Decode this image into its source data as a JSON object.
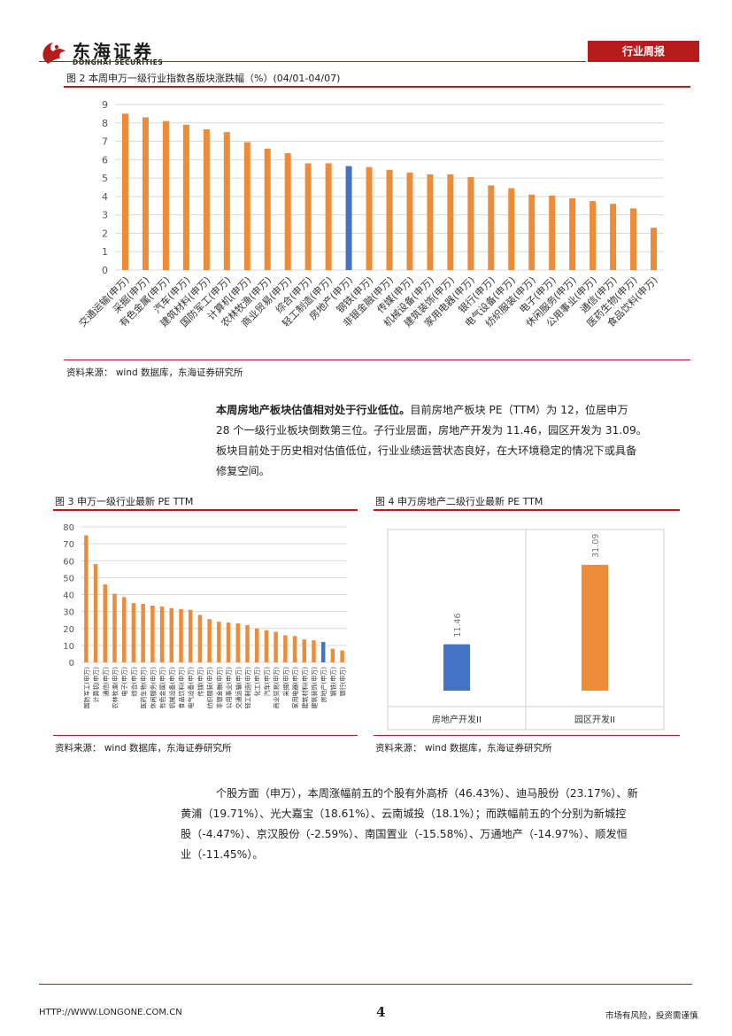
{
  "header": {
    "brand_cn": "东海证券",
    "brand_en": "DONGHAI SECURITIES",
    "report_type": "行业周报",
    "accent_color": "#b71c1c"
  },
  "figure2": {
    "caption": "图 2   本周申万一级行业指数各版块涨跌幅（%）(04/01-04/07)",
    "source": "资料来源：   wind 数据库，东海证券研究所"
  },
  "paragraph1": {
    "bold": "本周房地产板块估值相对处于行业低位。",
    "line1": "目前房地产板块 PE（TTM）为 12，位居申万",
    "line2": "28 个一级行业板块倒数第三位。子行业层面，房地产开发为 11.46，园区开发为 31.09。",
    "line3": "板块目前处于历史相对估值低位，行业业绩运营状态良好，在大环境稳定的情况下或具备",
    "line4": "修复空间。"
  },
  "figure3": {
    "caption": "图 3   申万一级行业最新 PE TTM",
    "source": "资料来源：   wind 数据库，东海证券研究所"
  },
  "figure4": {
    "caption": "图 4   申万房地产二级行业最新 PE TTM",
    "source": "资料来源：   wind 数据库，东海证券研究所"
  },
  "paragraph2": {
    "line1": "个股方面（申万），本周涨幅前五的个股有外高桥（46.43%）、迪马股份（23.17%）、新",
    "line2": "黄浦（19.71%）、光大嘉宝（18.61%）、云南城投（18.1%）；而跌幅前五的个分别为新城控",
    "line3": "股（-4.47%）、京汉股份（-2.59%）、南国置业（-15.58%）、万通地产（-14.97%）、顺发恒",
    "line4": "业（-11.45%）。"
  },
  "footer": {
    "url": "HTTP://WWW.LONGONE.COM.CN",
    "page": "4",
    "disclaimer": "市场有风险，投资需谨慎"
  },
  "chart_data": [
    {
      "type": "bar",
      "categories": [
        "交通运输(申万)",
        "采掘(申万)",
        "有色金属(申万)",
        "汽车(申万)",
        "建筑材料(申万)",
        "国防军工(申万)",
        "计算机(申万)",
        "农林牧渔(申万)",
        "商业贸易(申万)",
        "综合(申万)",
        "轻工制造(申万)",
        "房地产(申万)",
        "钢铁(申万)",
        "非银金融(申万)",
        "传媒(申万)",
        "机械设备(申万)",
        "建筑装饰(申万)",
        "家用电器(申万)",
        "银行(申万)",
        "电气设备(申万)",
        "纺织服装(申万)",
        "电子(申万)",
        "休闲服务(申万)",
        "公用事业(申万)",
        "通信(申万)",
        "医药生物(申万)",
        "食品饮料(申万)"
      ],
      "values": [
        8.5,
        8.3,
        8.1,
        7.9,
        7.65,
        7.5,
        6.95,
        6.6,
        6.35,
        5.8,
        5.8,
        5.65,
        5.6,
        5.45,
        5.3,
        5.2,
        5.2,
        5.05,
        4.6,
        4.45,
        4.1,
        4.05,
        3.9,
        3.75,
        3.6,
        3.35,
        2.3
      ],
      "highlight_category": "房地产(申万)",
      "ylim": [
        0,
        9
      ],
      "yticks": [
        0,
        1,
        2,
        3,
        4,
        5,
        6,
        7,
        8,
        9
      ],
      "grid": true,
      "colors": {
        "bar": "#ed8b39",
        "highlight": "#4472c4"
      }
    },
    {
      "type": "bar",
      "categories": [
        "国防军工(申万)",
        "计算机(申万)",
        "通信(申万)",
        "农林牧渔(申万)",
        "电子(申万)",
        "综合(申万)",
        "医药生物(申万)",
        "休闲服务(申万)",
        "有色金属(申万)",
        "机械设备(申万)",
        "食品饮料(申万)",
        "电气设备(申万)",
        "传媒(申万)",
        "纺织服装(申万)",
        "非银金融(申万)",
        "公用事业(申万)",
        "交通运输(申万)",
        "轻工制造(申万)",
        "化工(申万)",
        "汽车(申万)",
        "商业贸易(申万)",
        "采掘(申万)",
        "家用电器(申万)",
        "建筑材料(申万)",
        "建筑装饰(申万)",
        "房地产(申万)",
        "钢铁(申万)",
        "银行(申万)"
      ],
      "values": [
        75,
        58,
        46,
        40.5,
        38.5,
        35,
        34.5,
        33.5,
        33,
        32,
        31.5,
        31,
        28,
        25.5,
        24,
        23.5,
        23,
        22,
        20,
        19,
        18,
        16,
        15.5,
        13.5,
        13,
        12,
        8,
        7
      ],
      "highlight_category": "房地产(申万)",
      "ylim": [
        0,
        80
      ],
      "yticks": [
        0,
        10,
        20,
        30,
        40,
        50,
        60,
        70,
        80
      ],
      "grid": true,
      "colors": {
        "bar": "#ed8b39",
        "highlight": "#4472c4"
      }
    },
    {
      "type": "bar",
      "categories": [
        "房地产开发II",
        "园区开发II"
      ],
      "values": [
        11.46,
        31.09
      ],
      "value_labels": [
        "11.46",
        "31.09"
      ],
      "ylim": [
        0,
        35
      ],
      "grid": false,
      "colors": {
        "bars": [
          "#4472c4",
          "#ed8b39"
        ]
      }
    }
  ]
}
